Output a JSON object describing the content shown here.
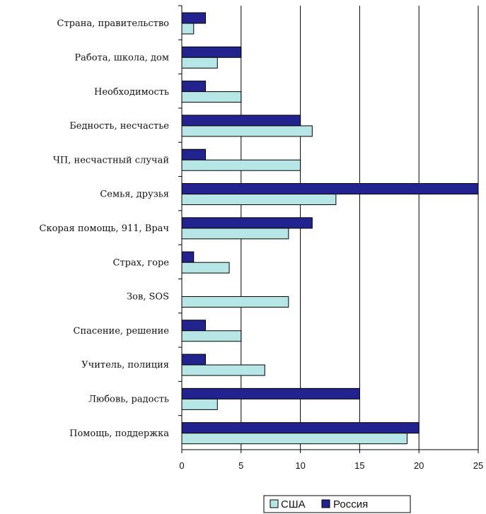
{
  "chart_data": {
    "type": "bar",
    "orientation": "horizontal",
    "title": "",
    "xlabel": "",
    "ylabel": "",
    "xlim": [
      0,
      25
    ],
    "xticks": [
      0,
      5,
      10,
      15,
      20,
      25
    ],
    "grid": true,
    "legend_position": "bottom",
    "categories": [
      "Страна, правительство",
      "Работа, школа, дом",
      "Необходимость",
      "Бедность, несчастье",
      "ЧП, несчастный случай",
      "Семья, друзья",
      "Скорая помощь, 911, Врач",
      "Страх, горе",
      "Зов, SOS",
      "Спасение, решение",
      "Учитель, полиция",
      "Любовь, радость",
      "Помощь, поддержка"
    ],
    "series": [
      {
        "name": "Россия",
        "color": "#23238f",
        "values": [
          2,
          5,
          2,
          10,
          2,
          25,
          11,
          1,
          0,
          2,
          2,
          15,
          20
        ]
      },
      {
        "name": "США",
        "color": "#b6e6e6",
        "values": [
          1,
          3,
          5,
          11,
          10,
          13,
          9,
          4,
          9,
          5,
          7,
          3,
          19
        ]
      }
    ]
  }
}
